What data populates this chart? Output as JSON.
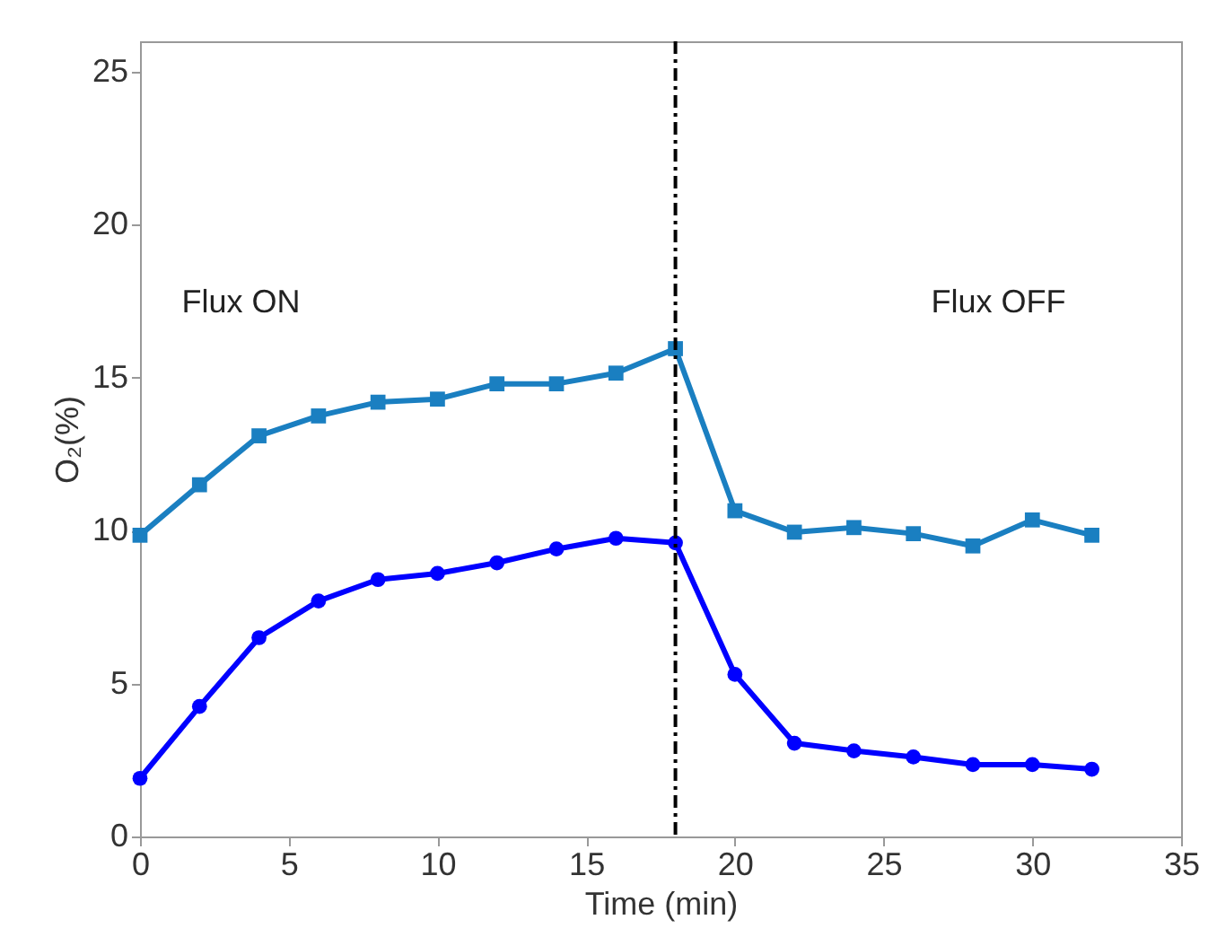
{
  "chart_data": {
    "type": "line",
    "xlabel": "Time (min)",
    "ylabel": "O₂(%)",
    "x": [
      0,
      2,
      4,
      6,
      8,
      10,
      12,
      14,
      16,
      18,
      20,
      22,
      24,
      26,
      28,
      30,
      32
    ],
    "series": [
      {
        "color": "#1a7fc1",
        "marker": "square",
        "values": [
          9.85,
          11.5,
          13.1,
          13.75,
          14.2,
          14.3,
          14.8,
          14.8,
          15.15,
          15.95,
          10.65,
          9.95,
          10.1,
          9.9,
          9.5,
          10.35,
          9.85
        ]
      },
      {
        "color": "#0000ff",
        "marker": "circle",
        "values": [
          1.9,
          4.25,
          6.5,
          7.7,
          8.4,
          8.6,
          8.95,
          9.4,
          9.75,
          9.6,
          5.3,
          3.05,
          2.8,
          2.6,
          2.35,
          2.35,
          2.2
        ]
      }
    ],
    "xlim": [
      0,
      35
    ],
    "xticks": [
      0,
      5,
      10,
      15,
      20,
      25,
      30,
      35
    ],
    "ylim": [
      0,
      26
    ],
    "yticks": [
      0,
      5,
      10,
      15,
      20,
      25
    ],
    "ref_lines": [
      {
        "axis": "x",
        "value": 18,
        "color": "#000000",
        "line_style": "dashdot"
      }
    ],
    "annotations": [
      "Flux ON",
      "Flux OFF"
    ]
  }
}
